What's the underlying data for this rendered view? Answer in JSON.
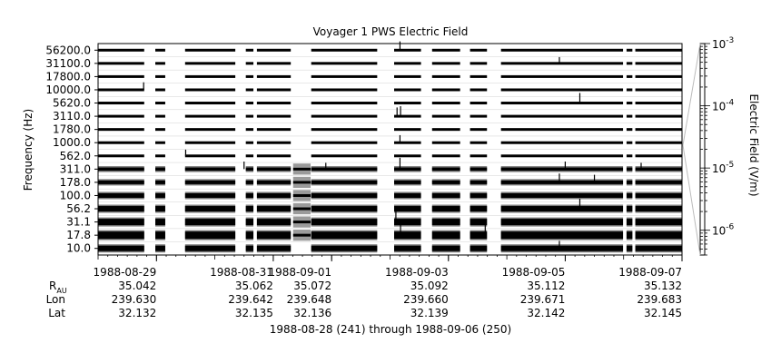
{
  "chart_data": {
    "type": "heatmap",
    "title": "Voyager 1 PWS Electric Field",
    "ylabel": "Frequency (Hz)",
    "colorbar_label": "Electric Field (V/m)",
    "channels": [
      "56200.0",
      "31100.0",
      "17800.0",
      "10000.0",
      "5620.0",
      "3110.0",
      "1780.0",
      "1000.0",
      "562.0",
      "311.0",
      "178.0",
      "100.0",
      "56.2",
      "31.1",
      "17.8",
      "10.0"
    ],
    "colorbar_ticks": [
      {
        "base": "10",
        "exp": "-3"
      },
      {
        "base": "10",
        "exp": "-4"
      },
      {
        "base": "10",
        "exp": "-5"
      },
      {
        "base": "10",
        "exp": "-6"
      }
    ],
    "colorbar_range": [
      4e-07,
      0.001
    ],
    "colorbar_scale": "log",
    "x_range_days": [
      241,
      251
    ],
    "x_ticks": [
      {
        "date": "1988-08-29",
        "r": "35.042",
        "lon": "239.630",
        "lat": "32.132"
      },
      {
        "date": "1988-08-31",
        "r": "35.062",
        "lon": "239.642",
        "lat": "32.135"
      },
      {
        "date": "1988-09-01",
        "r": "35.072",
        "lon": "239.648",
        "lat": "32.136"
      },
      {
        "date": "1988-09-03",
        "r": "35.092",
        "lon": "239.660",
        "lat": "32.139"
      },
      {
        "date": "1988-09-05",
        "r": "35.112",
        "lon": "239.671",
        "lat": "32.142"
      },
      {
        "date": "1988-09-07",
        "r": "35.132",
        "lon": "239.683",
        "lat": "32.145"
      }
    ],
    "coord_labels": {
      "r_main": "R",
      "r_sub": "AU",
      "lon": "Lon",
      "lat": "Lat"
    },
    "date_range_label": "1988-08-28 (241) through 1988-09-06 (250)",
    "data_segments_days": [
      [
        241.0,
        241.79
      ],
      [
        241.98,
        242.15
      ],
      [
        242.49,
        243.35
      ],
      [
        243.53,
        243.66
      ],
      [
        243.72,
        244.3
      ],
      [
        244.65,
        245.78
      ],
      [
        246.07,
        246.53
      ],
      [
        246.72,
        247.2
      ],
      [
        247.37,
        247.66
      ],
      [
        247.9,
        249.99
      ],
      [
        250.05,
        250.15
      ],
      [
        250.2,
        251.0
      ]
    ],
    "grey_block_days": [
      244.34,
      244.64
    ],
    "grey_block_channels": [
      "311.0",
      "178.0",
      "100.0",
      "56.2",
      "31.1",
      "17.8"
    ],
    "spikes": [
      {
        "channel": "56200.0",
        "day": 246.17,
        "height": 0.7
      },
      {
        "channel": "31100.0",
        "day": 248.9,
        "height": 0.5
      },
      {
        "channel": "10000.0",
        "day": 241.78,
        "height": 0.6
      },
      {
        "channel": "5620.0",
        "day": 249.25,
        "height": 0.8
      },
      {
        "channel": "3110.0",
        "day": 246.12,
        "height": 0.7
      },
      {
        "channel": "3110.0",
        "day": 246.18,
        "height": 0.8
      },
      {
        "channel": "1000.0",
        "day": 246.17,
        "height": 0.6
      },
      {
        "channel": "562.0",
        "day": 242.5,
        "height": 0.5
      },
      {
        "channel": "311.0",
        "day": 243.5,
        "height": 0.6
      },
      {
        "channel": "311.0",
        "day": 244.9,
        "height": 0.5
      },
      {
        "channel": "311.0",
        "day": 246.17,
        "height": 0.9
      },
      {
        "channel": "311.0",
        "day": 249.0,
        "height": 0.6
      },
      {
        "channel": "311.0",
        "day": 250.3,
        "height": 0.5
      },
      {
        "channel": "178.0",
        "day": 248.9,
        "height": 0.7
      },
      {
        "channel": "178.0",
        "day": 249.5,
        "height": 0.6
      },
      {
        "channel": "56.2",
        "day": 249.25,
        "height": 0.8
      },
      {
        "channel": "31.1",
        "day": 246.1,
        "height": 0.9
      },
      {
        "channel": "17.8",
        "day": 246.18,
        "height": 0.9
      },
      {
        "channel": "17.8",
        "day": 247.63,
        "height": 1.0
      },
      {
        "channel": "10.0",
        "day": 248.9,
        "height": 0.6
      }
    ]
  }
}
